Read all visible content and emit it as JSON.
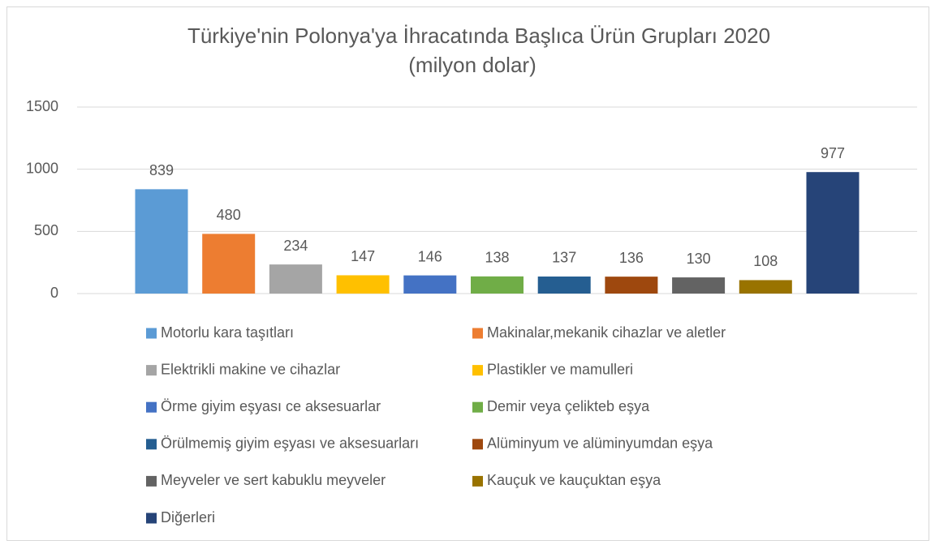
{
  "chart_data": {
    "type": "bar",
    "title": "Türkiye'nin Polonya'ya İhracatında Başlıca Ürün Grupları 2020",
    "subtitle": "(milyon dolar)",
    "categories": [
      null
    ],
    "series": [
      {
        "name": "Motorlu kara taşıtları",
        "color": "#5B9BD5",
        "values": [
          839
        ]
      },
      {
        "name": "Makinalar,mekanik cihazlar ve aletler",
        "color": "#ED7D31",
        "values": [
          480
        ]
      },
      {
        "name": "Elektrikli makine ve cihazlar",
        "color": "#A5A5A5",
        "values": [
          234
        ]
      },
      {
        "name": "Plastikler ve mamulleri",
        "color": "#FFC000",
        "values": [
          147
        ]
      },
      {
        "name": "Örme giyim eşyası ce aksesuarlar",
        "color": "#4472C4",
        "values": [
          146
        ]
      },
      {
        "name": "Demir veya çelikteb eşya",
        "color": "#70AD47",
        "values": [
          138
        ]
      },
      {
        "name": "Örülmemiş giyim eşyası ve aksesuarları",
        "color": "#255E91",
        "values": [
          137
        ]
      },
      {
        "name": "Alüminyum ve alüminyumdan eşya",
        "color": "#9E480E",
        "values": [
          136
        ]
      },
      {
        "name": "Meyveler ve sert kabuklu meyveler",
        "color": "#636363",
        "values": [
          130
        ]
      },
      {
        "name": "Kauçuk ve kauçuktan eşya",
        "color": "#997300",
        "values": [
          108
        ]
      },
      {
        "name": "Diğerleri",
        "color": "#264478",
        "values": [
          977
        ]
      }
    ],
    "ylim": [
      0,
      1500
    ],
    "yticks": [
      0,
      500,
      1000,
      1500
    ],
    "grid": true,
    "legend": "bottom"
  }
}
